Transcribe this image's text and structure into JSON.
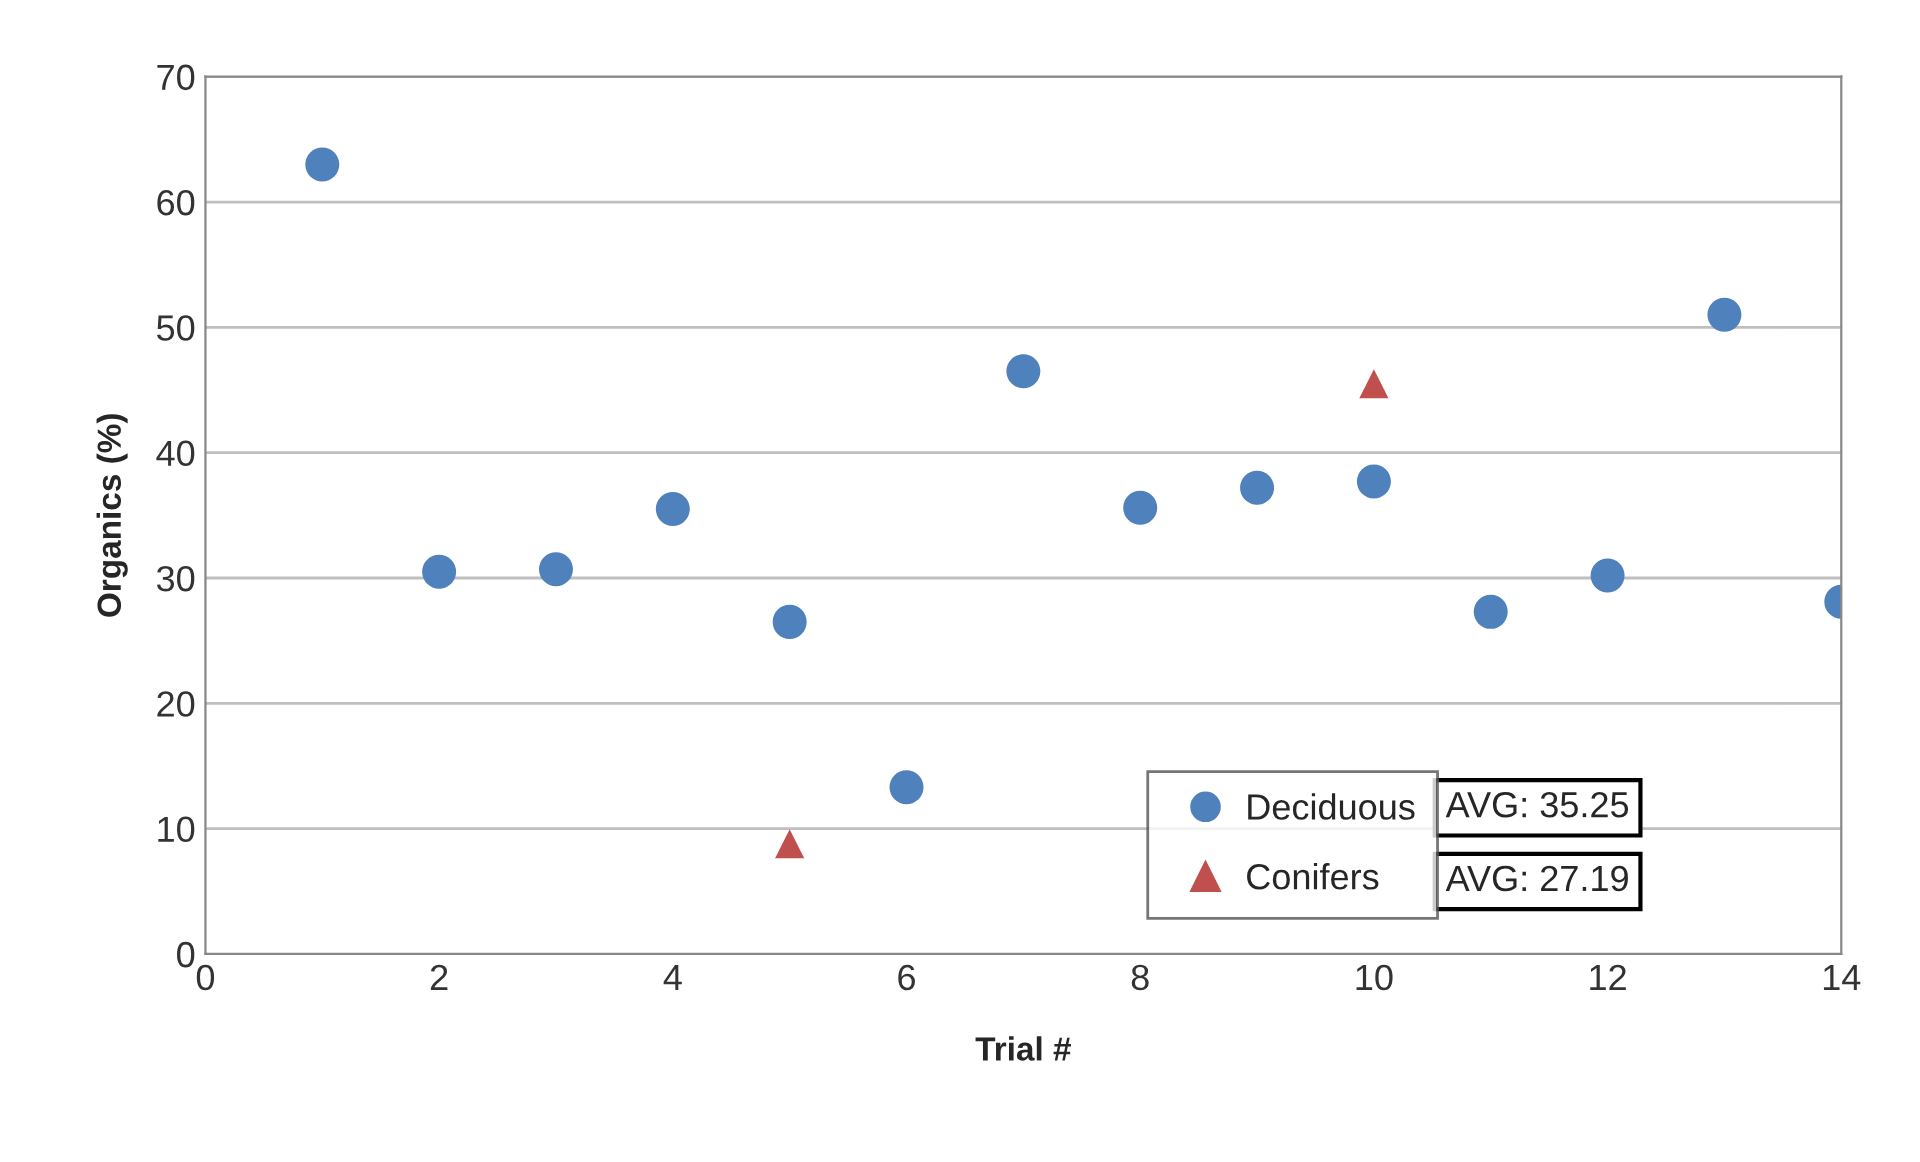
{
  "chart_data": {
    "type": "scatter",
    "xlabel": "Trial #",
    "ylabel": "Organics (%)",
    "series": [
      {
        "name": "Deciduous",
        "color": "#4f81bd",
        "marker": "circle",
        "x": [
          1,
          2,
          3,
          4,
          5,
          6,
          7,
          8,
          9,
          10,
          11,
          12,
          13,
          14
        ],
        "values": [
          63,
          30.5,
          30.7,
          35.5,
          26.5,
          13.3,
          46.5,
          35.6,
          37.2,
          37.7,
          27.3,
          30.2,
          51,
          28.1
        ]
      },
      {
        "name": "Conifers",
        "color": "#c0504d",
        "marker": "triangle",
        "x": [
          5,
          10
        ],
        "values": [
          8.8,
          45.5
        ]
      }
    ],
    "annotations": [
      "AVG: 35.25",
      "AVG: 27.19"
    ],
    "xlim": [
      0,
      14
    ],
    "xticks": [
      0,
      2,
      4,
      6,
      8,
      10,
      12,
      14
    ],
    "ylim": [
      0,
      70
    ],
    "yticks": [
      0,
      10,
      20,
      30,
      40,
      50,
      60,
      70
    ],
    "grid": "y",
    "legend": "bottom"
  }
}
